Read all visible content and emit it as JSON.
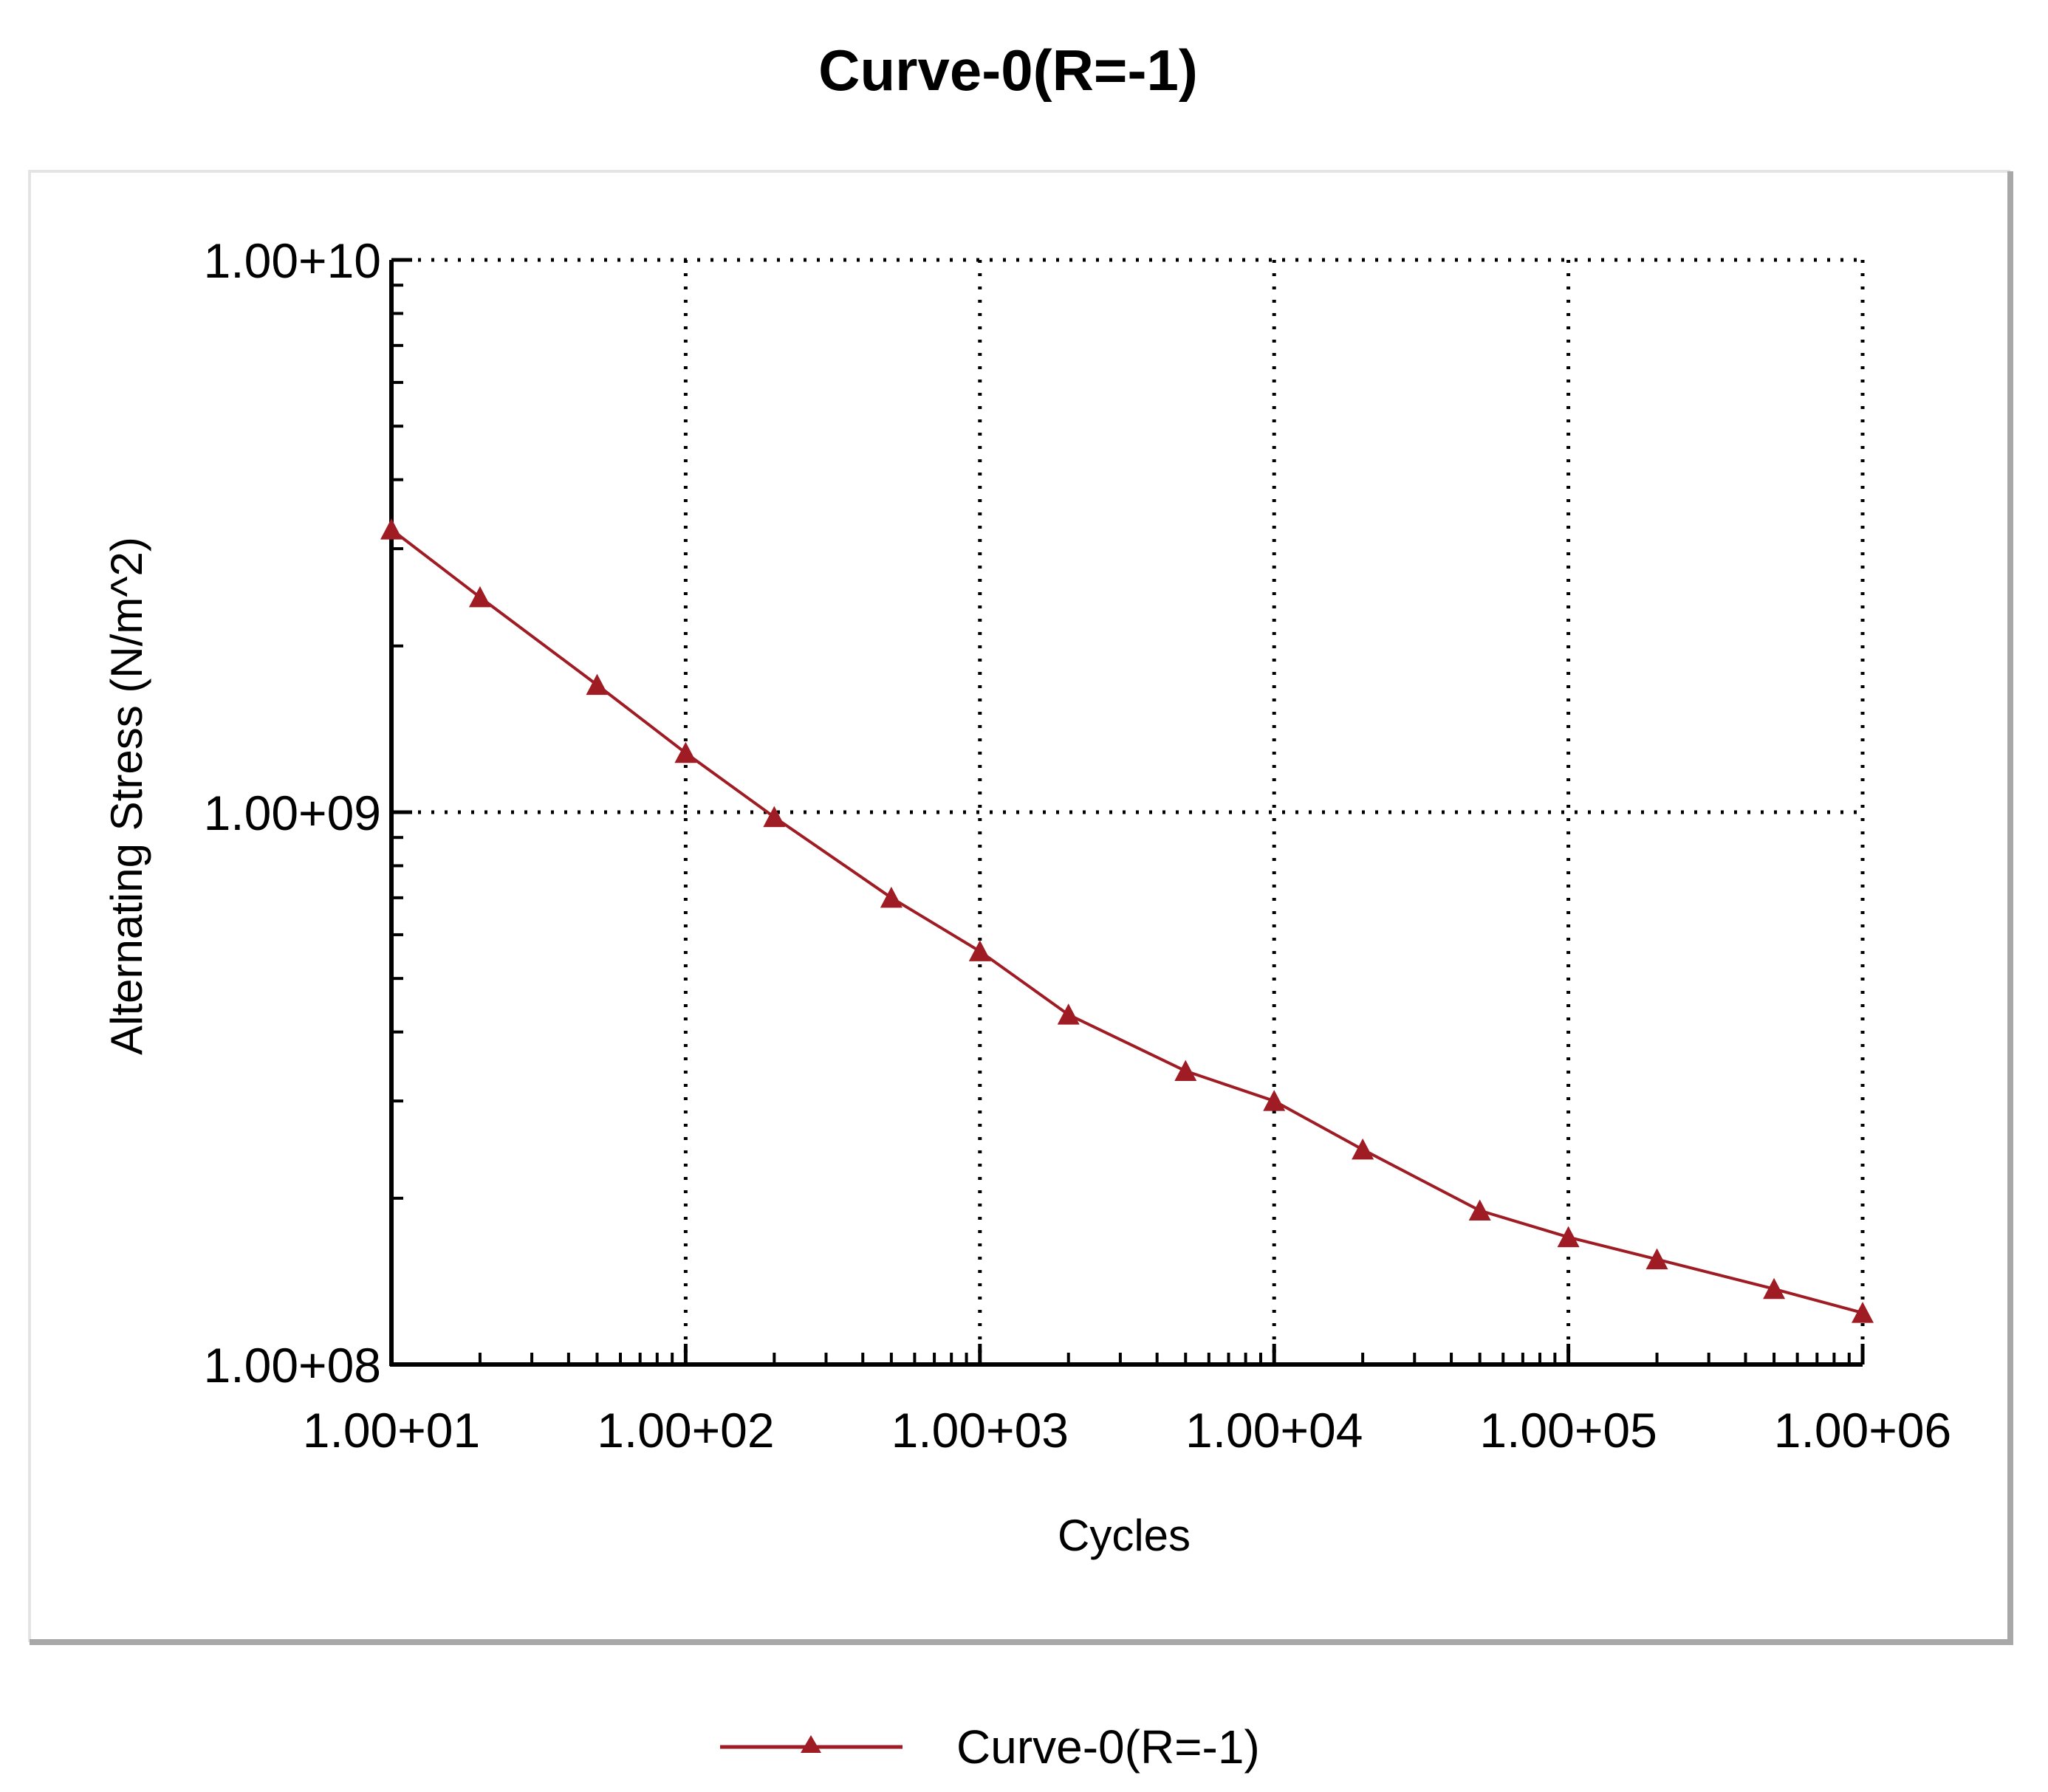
{
  "chart_data": {
    "type": "line",
    "title": "Curve-0(R=-1)",
    "xlabel": "Cycles",
    "ylabel": "Alternating Stress (N/m^2)",
    "x_scale": "log",
    "y_scale": "log",
    "xlim": [
      10,
      1000000
    ],
    "ylim": [
      100000000,
      10000000000
    ],
    "x_ticks": [
      {
        "value": 10,
        "label": "1.00+01"
      },
      {
        "value": 100,
        "label": "1.00+02"
      },
      {
        "value": 1000,
        "label": "1.00+03"
      },
      {
        "value": 10000,
        "label": "1.00+04"
      },
      {
        "value": 100000,
        "label": "1.00+05"
      },
      {
        "value": 1000000,
        "label": "1.00+06"
      }
    ],
    "y_ticks": [
      {
        "value": 100000000,
        "label": "1.00+08"
      },
      {
        "value": 1000000000,
        "label": "1.00+09"
      },
      {
        "value": 10000000000,
        "label": "1.00+10"
      }
    ],
    "grid": true,
    "legend_position": "bottom-center",
    "series": [
      {
        "name": "Curve-0(R=-1)",
        "color": "#a01c24",
        "marker": "triangle",
        "x": [
          10,
          20,
          50,
          100,
          200,
          500,
          1000,
          2000,
          5000,
          10000,
          20000,
          50000,
          100000,
          200000,
          500000,
          1000000
        ],
        "y": [
          3250000000,
          2450000000,
          1700000000,
          1280000000,
          980000000,
          700000000,
          560000000,
          430000000,
          340000000,
          300000000,
          245000000,
          190000000,
          170000000,
          155000000,
          137000000,
          124000000
        ]
      }
    ]
  }
}
